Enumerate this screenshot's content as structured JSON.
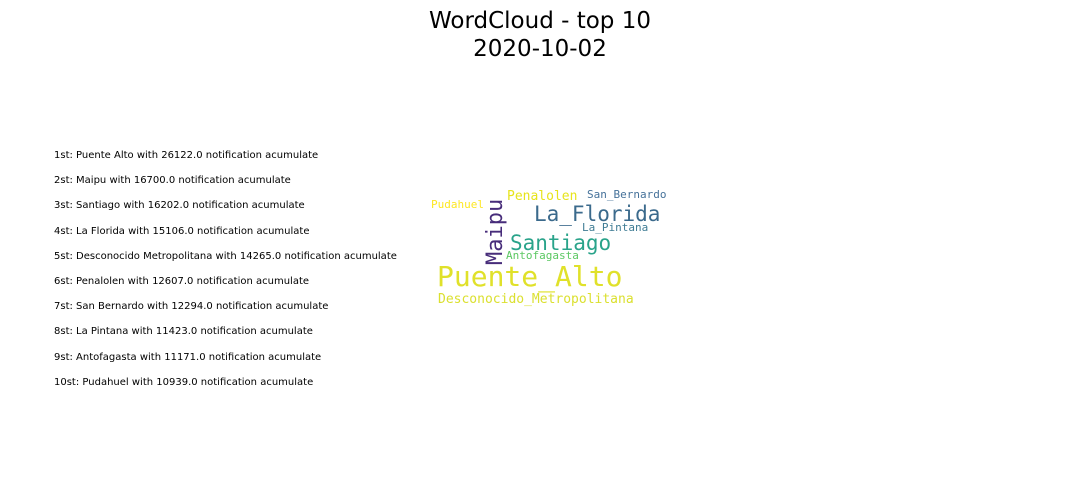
{
  "chart_data": {
    "type": "wordcloud",
    "title": "WordCloud - top 10",
    "subtitle": "2020-10-02",
    "ranking_text": [
      "1st: Puente Alto with 26122.0 notification acumulate",
      "2st: Maipu with 16700.0 notification acumulate",
      "3st: Santiago with 16202.0 notification acumulate",
      "4st: La Florida with 15106.0 notification acumulate",
      "5st: Desconocido Metropolitana with 14265.0 notification acumulate",
      "6st: Penalolen with 12607.0 notification acumulate",
      "7st: San Bernardo with 12294.0 notification acumulate",
      "8st: La Pintana with 11423.0 notification acumulate",
      "9st: Antofagasta with 11171.0 notification acumulate",
      "10st: Pudahuel with 10939.0 notification acumulate"
    ],
    "words": [
      {
        "word": "Puente_Alto",
        "value": 26122.0,
        "color": "#e0e12a",
        "orientation": "horizontal"
      },
      {
        "word": "Maipu",
        "value": 16700.0,
        "color": "#472c7a",
        "orientation": "vertical"
      },
      {
        "word": "Santiago",
        "value": 16202.0,
        "color": "#29a38a",
        "orientation": "horizontal"
      },
      {
        "word": "La_Florida",
        "value": 15106.0,
        "color": "#3b6a8c",
        "orientation": "horizontal"
      },
      {
        "word": "Desconocido_Metropolitana",
        "value": 14265.0,
        "color": "#dbe030",
        "orientation": "horizontal"
      },
      {
        "word": "Penalolen",
        "value": 12607.0,
        "color": "#e7e41c",
        "orientation": "horizontal"
      },
      {
        "word": "San_Bernardo",
        "value": 12294.0,
        "color": "#46729a",
        "orientation": "horizontal"
      },
      {
        "word": "La_Pintana",
        "value": 11423.0,
        "color": "#3f7c94",
        "orientation": "horizontal"
      },
      {
        "word": "Antofagasta",
        "value": 11171.0,
        "color": "#5cc863",
        "orientation": "horizontal"
      },
      {
        "word": "Pudahuel",
        "value": 10939.0,
        "color": "#fde725",
        "orientation": "horizontal"
      }
    ]
  }
}
